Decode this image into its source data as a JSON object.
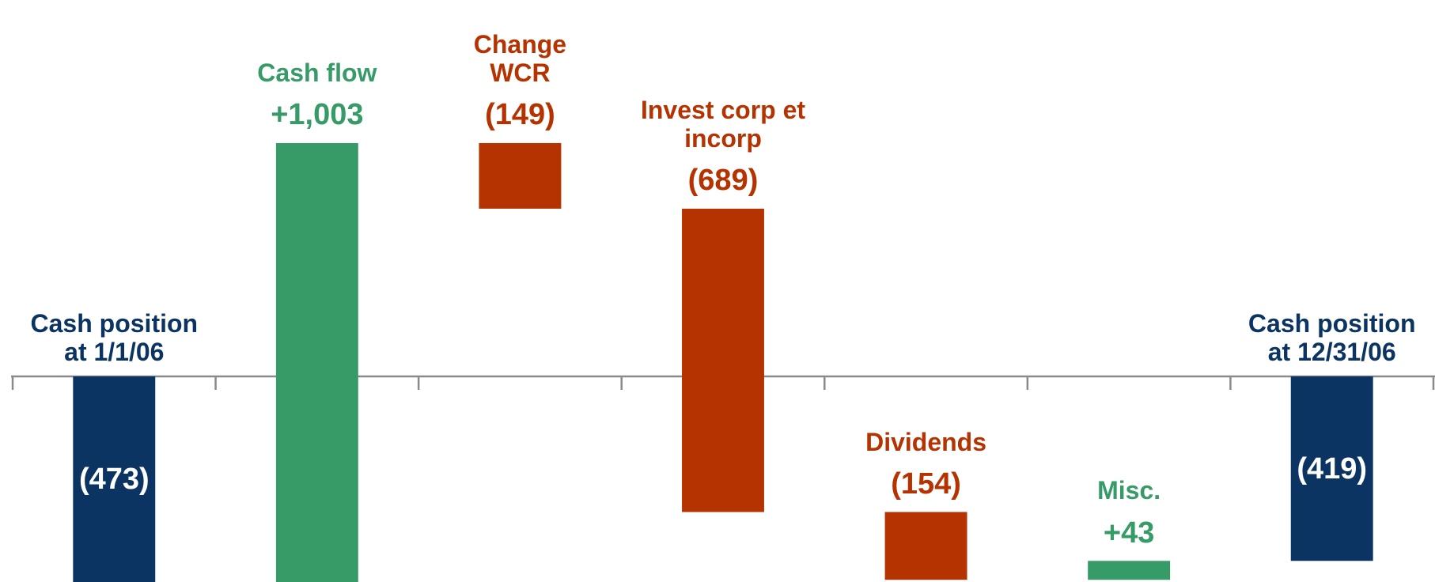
{
  "chart_data": {
    "type": "waterfall",
    "categories": [
      "Cash position\nat 1/1/06",
      "Cash flow",
      "Change\nWCR",
      "Invest corp et\nincorp",
      "Dividends",
      "Misc.",
      "Cash position\nat 12/31/06"
    ],
    "values": [
      -473,
      1003,
      -149,
      -689,
      -154,
      43,
      -419
    ],
    "value_labels": [
      "(473)",
      "+1,003",
      "(149)",
      "(689)",
      "(154)",
      "+43",
      "(419)"
    ],
    "totals": [
      0,
      6
    ],
    "colors": [
      "#0b3463",
      "#379b68",
      "#b53300",
      "#b53300",
      "#b53300",
      "#379b68",
      "#0b3463"
    ],
    "ylim": [
      -467,
      855
    ]
  }
}
